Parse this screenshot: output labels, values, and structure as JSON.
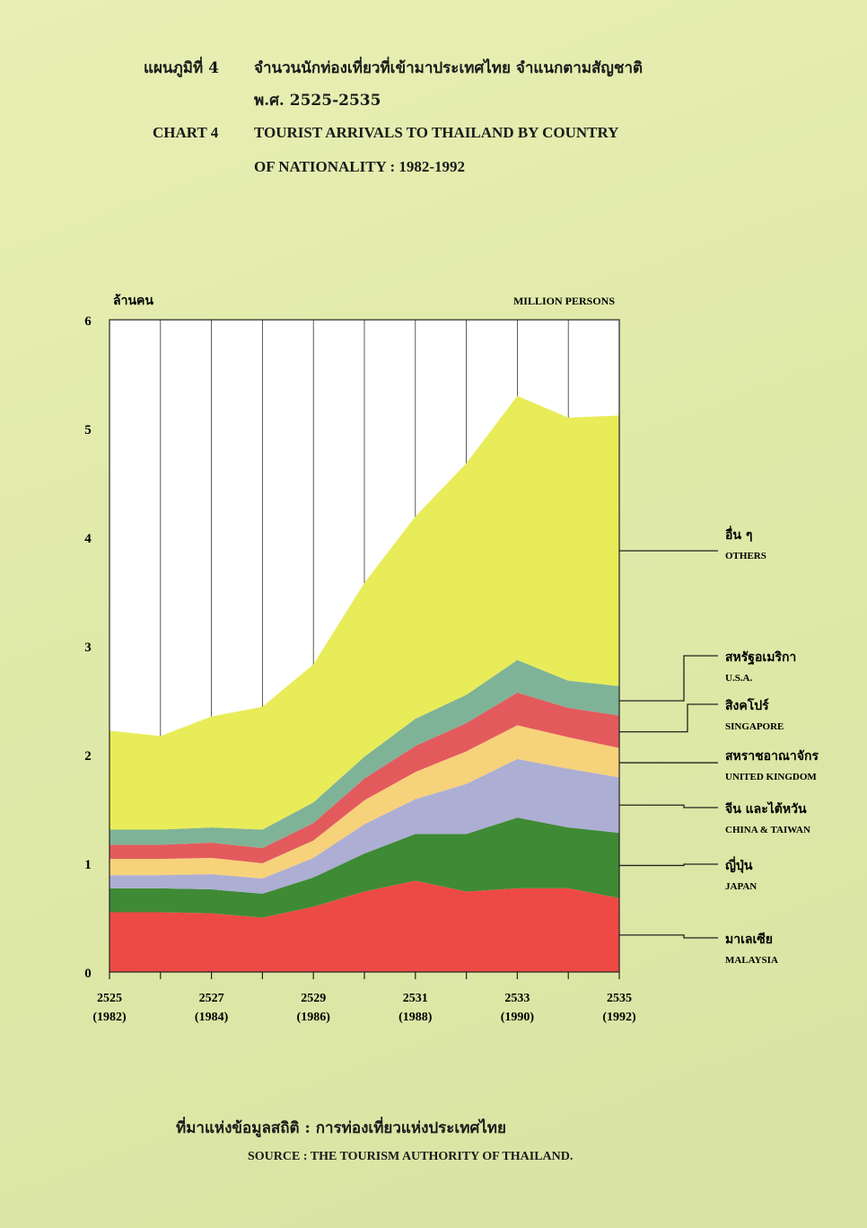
{
  "header": {
    "th_label": "แผนภูมิที่  4",
    "th_title": "จำนวนนักท่องเที่ยวที่เข้ามาประเทศไทย จำแนกตามสัญชาติ",
    "th_years": "พ.ศ. 2525-2535",
    "en_label": "CHART  4",
    "en_title_line1": "TOURIST ARRIVALS TO THAILAND BY COUNTRY",
    "en_title_line2": "OF NATIONALITY : 1982-1992"
  },
  "source": {
    "th": "ที่มาแห่งข้อมูลสถิติ : การท่องเที่ยวแห่งประเทศไทย",
    "en": "SOURCE  :  THE TOURISM AUTHORITY OF THAILAND."
  },
  "chart_data": {
    "type": "area",
    "stacked": true,
    "ylabel_th": "ล้านคน",
    "ylabel_en": "MILLION PERSONS",
    "ylim": [
      0,
      6
    ],
    "yticks": [
      "0",
      "1",
      "2",
      "3",
      "4",
      "5",
      "6"
    ],
    "x": [
      1982,
      1983,
      1984,
      1985,
      1986,
      1987,
      1988,
      1989,
      1990,
      1991,
      1992
    ],
    "xticks": [
      {
        "be": "2525",
        "ce": "(1982)"
      },
      {
        "be": "2527",
        "ce": "(1984)"
      },
      {
        "be": "2529",
        "ce": "(1986)"
      },
      {
        "be": "2531",
        "ce": "(1988)"
      },
      {
        "be": "2533",
        "ce": "(1990)"
      },
      {
        "be": "2535",
        "ce": "(1992)"
      }
    ],
    "grid": true,
    "series": [
      {
        "name_th": "มาเลเซีย",
        "name_en": "MALAYSIA",
        "color": "#ee4a45",
        "values": [
          0.55,
          0.55,
          0.54,
          0.5,
          0.6,
          0.74,
          0.84,
          0.74,
          0.77,
          0.77,
          0.68
        ]
      },
      {
        "name_th": "ญี่ปุ่น",
        "name_en": "JAPAN",
        "color": "#3f8a35",
        "values": [
          0.22,
          0.22,
          0.22,
          0.22,
          0.27,
          0.35,
          0.43,
          0.53,
          0.65,
          0.56,
          0.6
        ]
      },
      {
        "name_th": "จีน และไต้หวัน",
        "name_en": "CHINA & TAIWAN",
        "color": "#adaed3",
        "values": [
          0.12,
          0.12,
          0.14,
          0.14,
          0.18,
          0.27,
          0.32,
          0.46,
          0.54,
          0.54,
          0.51
        ]
      },
      {
        "name_th": "สหราชอาณาจักร",
        "name_en": "UNITED KINGDOM",
        "color": "#f6d27a",
        "values": [
          0.15,
          0.15,
          0.15,
          0.14,
          0.16,
          0.22,
          0.25,
          0.3,
          0.31,
          0.29,
          0.27
        ]
      },
      {
        "name_th": "สิงคโปร์",
        "name_en": "SINGAPORE",
        "color": "#e35a5d",
        "values": [
          0.13,
          0.13,
          0.14,
          0.14,
          0.16,
          0.2,
          0.24,
          0.26,
          0.3,
          0.27,
          0.3
        ]
      },
      {
        "name_th": "สหรัฐอเมริกา",
        "name_en": "U.S.A.",
        "color": "#7fb397",
        "values": [
          0.14,
          0.14,
          0.14,
          0.17,
          0.19,
          0.2,
          0.25,
          0.26,
          0.3,
          0.25,
          0.27
        ]
      },
      {
        "name_th": "อื่น ๆ",
        "name_en": "OTHERS",
        "color": "#e8ec58",
        "values": [
          0.91,
          0.86,
          1.02,
          1.13,
          1.27,
          1.6,
          1.86,
          2.13,
          2.43,
          2.42,
          2.49
        ]
      }
    ]
  }
}
